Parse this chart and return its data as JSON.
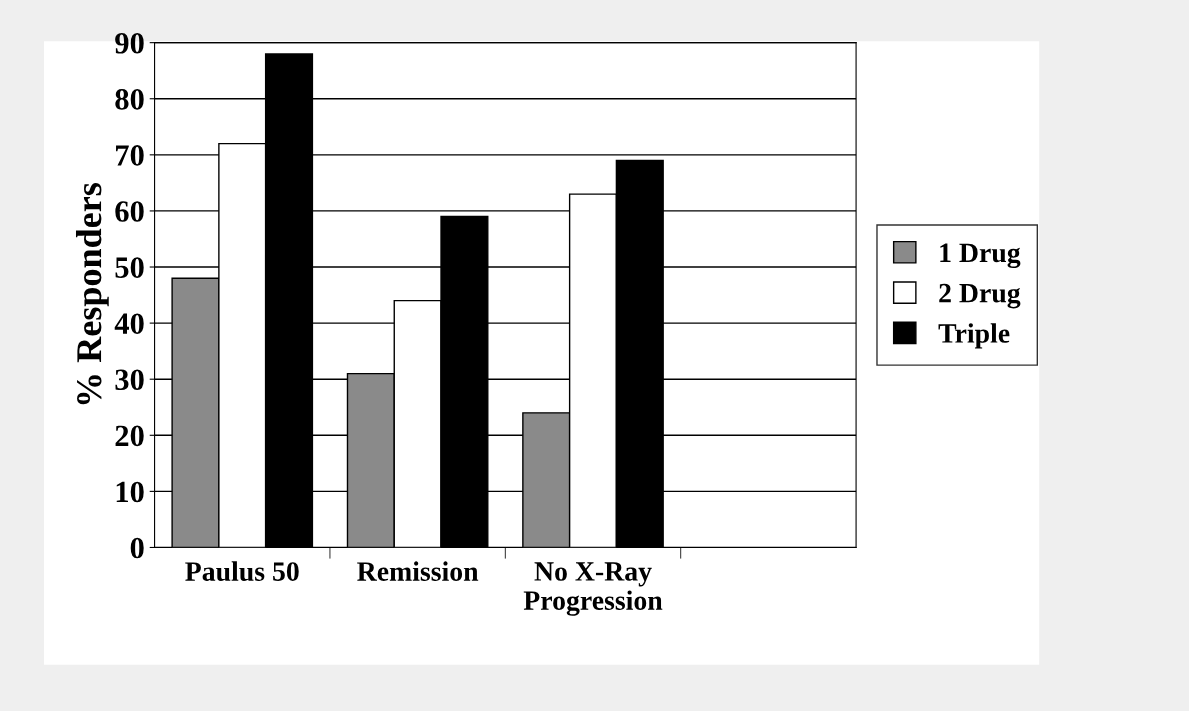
{
  "chart_data": {
    "type": "bar",
    "ylabel": "% Responders",
    "categories": [
      "Paulus 50",
      "Remission",
      "No X-Ray\nProgression",
      null
    ],
    "series": [
      {
        "name": "1 Drug",
        "color": "#8a8a8a",
        "values": [
          48,
          31,
          24,
          null
        ]
      },
      {
        "name": "2 Drug",
        "color": "#ffffff",
        "values": [
          72,
          44,
          63,
          null
        ]
      },
      {
        "name": "Triple",
        "color": "#000000",
        "values": [
          88,
          59,
          69,
          null
        ]
      }
    ],
    "ylim": [
      0,
      90
    ],
    "yticks": [
      0,
      10,
      20,
      30,
      40,
      50,
      60,
      70,
      80,
      90
    ],
    "grid": "y",
    "legend": "right"
  }
}
